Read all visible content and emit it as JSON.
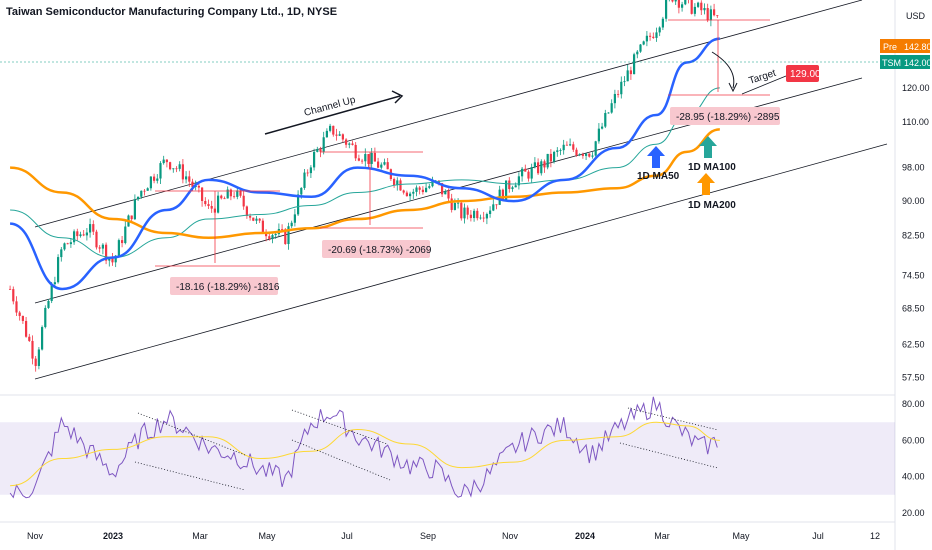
{
  "header": {
    "title": "Taiwan Semiconductor Manufacturing Company Ltd., 1D, NYSE"
  },
  "price_axis": {
    "currency": "USD",
    "pre_label": "Pre",
    "pre_value": "142.80",
    "ticker_label": "TSM",
    "ticker_value": "142.00",
    "pre_color": "#f57c00",
    "ticker_color": "#089981"
  },
  "annotations": {
    "channel": "Channel Up",
    "target": "Target",
    "target_value": "129.00",
    "drop1": "-18.16 (-18.29%) -1816",
    "drop2": "-20.69 (-18.73%) -2069",
    "drop3": "-28.95 (-18.29%) -2895",
    "ma50": "1D MA50",
    "ma100": "1D MA100",
    "ma200": "1D MA200",
    "target_color": "#f23645",
    "ma50_color": "#2962ff",
    "ma100_color": "#26a69a",
    "ma200_color": "#ff9800"
  },
  "chart_data": [
    {
      "type": "line",
      "panel": "price",
      "y_ticks": [
        57.5,
        62.5,
        68.5,
        74.5,
        82.5,
        90.0,
        98.0,
        110.0,
        120.0
      ],
      "ylim": [
        55,
        150
      ],
      "x_ticks": [
        "Nov",
        "2023",
        "Mar",
        "May",
        "Jul",
        "Sep",
        "Nov",
        "2024",
        "Mar",
        "May",
        "Jul",
        "12"
      ],
      "series": [
        {
          "type": "candlestick",
          "x": [
            "2022-10-05",
            "2022-10-25",
            "2022-11-15",
            "2022-12-05",
            "2022-12-25",
            "2023-01-15",
            "2023-02-05",
            "2023-02-20",
            "2023-03-10",
            "2023-03-30",
            "2023-04-20",
            "2023-05-10",
            "2023-05-30",
            "2023-06-15",
            "2023-07-05",
            "2023-07-25",
            "2023-08-15",
            "2023-09-05",
            "2023-09-25",
            "2023-10-15",
            "2023-11-05",
            "2023-11-25",
            "2023-12-15",
            "2024-01-05",
            "2024-01-25",
            "2024-02-10",
            "2024-02-25",
            "2024-03-08",
            "2024-03-20",
            "2024-04-01",
            "2024-04-15"
          ],
          "values": [
            72,
            60,
            80,
            84,
            77,
            92,
            100,
            96,
            88,
            92,
            84,
            82,
            100,
            108,
            102,
            98,
            92,
            94,
            87,
            88,
            95,
            98,
            103,
            102,
            118,
            130,
            140,
            152,
            148,
            146,
            142
          ]
        },
        {
          "name": "1D MA50",
          "x": [
            "2022-10-05",
            "2022-11-15",
            "2022-12-25",
            "2023-02-05",
            "2023-03-10",
            "2023-04-20",
            "2023-05-30",
            "2023-07-05",
            "2023-08-15",
            "2023-09-25",
            "2023-11-05",
            "2023-12-15",
            "2024-01-25",
            "2024-02-25",
            "2024-03-20",
            "2024-04-15"
          ],
          "values": [
            85,
            72,
            78,
            88,
            95,
            92,
            91,
            98,
            96,
            93,
            90,
            95,
            103,
            112,
            128,
            136
          ]
        },
        {
          "name": "1D MA100",
          "x": [
            "2022-10-05",
            "2022-11-15",
            "2022-12-25",
            "2023-02-05",
            "2023-03-10",
            "2023-04-20",
            "2023-05-30",
            "2023-07-05",
            "2023-08-15",
            "2023-09-25",
            "2023-11-05",
            "2023-12-15",
            "2024-01-25",
            "2024-02-25",
            "2024-03-20",
            "2024-04-15"
          ],
          "values": [
            88,
            82,
            78,
            82,
            86,
            87,
            89,
            92,
            94,
            95,
            94,
            95,
            98,
            104,
            112,
            120
          ]
        },
        {
          "name": "1D MA200",
          "x": [
            "2022-10-05",
            "2022-11-15",
            "2022-12-25",
            "2023-02-05",
            "2023-03-10",
            "2023-04-20",
            "2023-05-30",
            "2023-07-05",
            "2023-08-15",
            "2023-09-25",
            "2023-11-05",
            "2023-12-15",
            "2024-01-25",
            "2024-02-25",
            "2024-03-20",
            "2024-04-15"
          ],
          "values": [
            98,
            92,
            86,
            83,
            82,
            83,
            84,
            86,
            88,
            90,
            91,
            92,
            93,
            96,
            102,
            108
          ]
        }
      ]
    },
    {
      "type": "line",
      "panel": "rsi",
      "y_ticks": [
        20.0,
        40.0,
        60.0,
        80.0
      ],
      "ylim": [
        15,
        85
      ],
      "band": [
        30,
        70
      ],
      "series": [
        {
          "name": "RSI",
          "x": [
            "2022-10-05",
            "2022-10-25",
            "2022-11-15",
            "2022-12-05",
            "2022-12-25",
            "2023-01-15",
            "2023-02-05",
            "2023-02-20",
            "2023-03-10",
            "2023-03-30",
            "2023-04-20",
            "2023-05-10",
            "2023-05-30",
            "2023-06-15",
            "2023-07-05",
            "2023-07-25",
            "2023-08-15",
            "2023-09-05",
            "2023-09-25",
            "2023-10-15",
            "2023-11-05",
            "2023-11-25",
            "2023-12-15",
            "2024-01-05",
            "2024-01-25",
            "2024-02-10",
            "2024-02-25",
            "2024-03-08",
            "2024-03-20",
            "2024-04-01",
            "2024-04-15"
          ],
          "values": [
            30,
            34,
            70,
            55,
            42,
            62,
            72,
            66,
            56,
            52,
            44,
            38,
            70,
            76,
            62,
            55,
            46,
            44,
            30,
            40,
            56,
            64,
            68,
            52,
            66,
            74,
            80,
            70,
            62,
            56,
            60
          ]
        },
        {
          "name": "RSI-based MA",
          "x": [
            "2022-10-05",
            "2022-11-15",
            "2022-12-25",
            "2023-02-05",
            "2023-03-10",
            "2023-04-20",
            "2023-05-30",
            "2023-07-05",
            "2023-08-15",
            "2023-09-25",
            "2023-11-05",
            "2023-12-15",
            "2024-01-25",
            "2024-02-25",
            "2024-03-20",
            "2024-04-15"
          ],
          "values": [
            35,
            50,
            55,
            62,
            62,
            50,
            54,
            66,
            58,
            45,
            48,
            60,
            62,
            70,
            68,
            60
          ]
        }
      ]
    }
  ]
}
